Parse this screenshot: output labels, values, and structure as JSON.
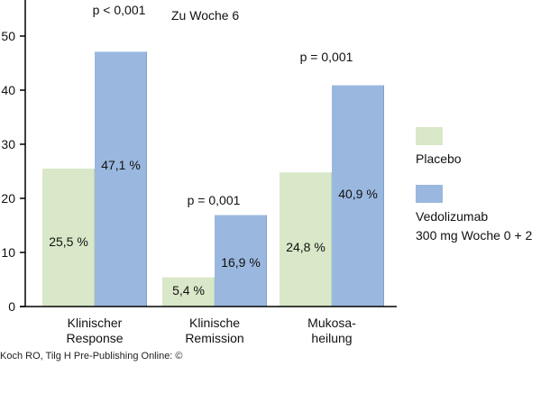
{
  "chart_data": {
    "type": "bar",
    "title": "Zu Woche 6",
    "categories": [
      [
        "Klinischer",
        "Response"
      ],
      [
        "Klinische",
        "Remission"
      ],
      [
        "Mukosa-",
        "heilung"
      ]
    ],
    "series": [
      {
        "name": "Placebo",
        "values": [
          25.5,
          5.4,
          24.8
        ],
        "labels": [
          "25,5 %",
          "5,4 %",
          "24,8 %"
        ],
        "color": "#d9e8c8"
      },
      {
        "name": "Vedolizumab",
        "name_line2": "300 mg Woche 0 + 2",
        "values": [
          47.1,
          16.9,
          40.9
        ],
        "labels": [
          "47,1 %",
          "16,9 %",
          "40,9 %"
        ],
        "color": "#9ab8df"
      }
    ],
    "p_values": [
      "p < 0,001",
      "p = 0,001",
      "p = 0,001"
    ],
    "ylim": [
      0,
      52
    ],
    "yticks": [
      0,
      10,
      20,
      30,
      40,
      50
    ],
    "xlabel": "",
    "ylabel": "",
    "grid": false,
    "legend_position": "right"
  },
  "source": "Koch RO, Tilg H Pre-Publishing Online: ©"
}
